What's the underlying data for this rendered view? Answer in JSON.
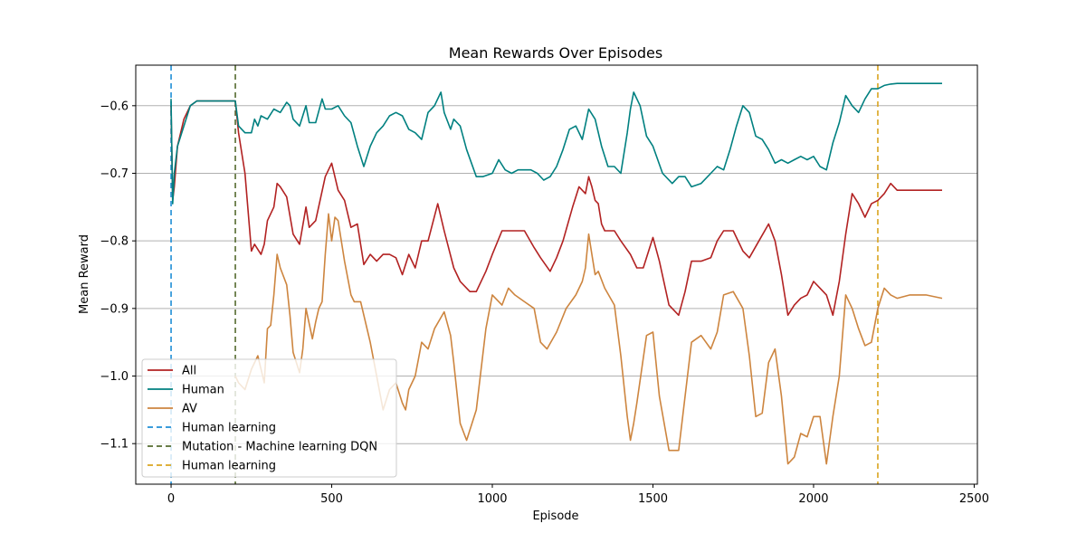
{
  "chart_data": {
    "type": "line",
    "title": "Mean Rewards Over Episodes",
    "xlabel": "Episode",
    "ylabel": "Mean Reward",
    "xlim": [
      -110,
      2510
    ],
    "ylim": [
      -1.16,
      -0.54
    ],
    "xticks": [
      0,
      500,
      1000,
      1500,
      2000,
      2500
    ],
    "yticks": [
      -0.6,
      -0.7,
      -0.8,
      -0.9,
      -1.0,
      -1.1
    ],
    "xtick_labels": [
      "0",
      "500",
      "1000",
      "1500",
      "2000",
      "2500"
    ],
    "ytick_labels": [
      "−0.6",
      "−0.7",
      "−0.8",
      "−0.9",
      "−1.0",
      "−1.1"
    ],
    "grid": "horizontal",
    "legend_position": "lower-left",
    "series": [
      {
        "name": "All",
        "color": "#b22222",
        "x": [
          0,
          5,
          10,
          20,
          40,
          60,
          80,
          100,
          150,
          200,
          210,
          230,
          250,
          260,
          280,
          290,
          300,
          320,
          330,
          340,
          360,
          380,
          400,
          420,
          430,
          450,
          480,
          500,
          520,
          540,
          560,
          580,
          600,
          620,
          640,
          660,
          680,
          700,
          720,
          740,
          760,
          780,
          800,
          830,
          850,
          880,
          900,
          930,
          950,
          980,
          1000,
          1030,
          1080,
          1100,
          1130,
          1150,
          1180,
          1200,
          1220,
          1250,
          1270,
          1290,
          1300,
          1310,
          1320,
          1330,
          1340,
          1350,
          1380,
          1400,
          1430,
          1450,
          1470,
          1490,
          1500,
          1520,
          1550,
          1580,
          1600,
          1620,
          1650,
          1680,
          1700,
          1720,
          1750,
          1780,
          1800,
          1830,
          1860,
          1880,
          1900,
          1920,
          1940,
          1960,
          1980,
          2000,
          2020,
          2040,
          2060,
          2080,
          2100,
          2120,
          2140,
          2160,
          2180,
          2200,
          2220,
          2240,
          2260,
          2300,
          2350,
          2400
        ],
        "y": [
          -0.6,
          -0.74,
          -0.72,
          -0.66,
          -0.62,
          -0.6,
          -0.593,
          -0.593,
          -0.593,
          -0.593,
          -0.64,
          -0.7,
          -0.815,
          -0.805,
          -0.82,
          -0.805,
          -0.77,
          -0.75,
          -0.715,
          -0.72,
          -0.735,
          -0.79,
          -0.805,
          -0.75,
          -0.78,
          -0.77,
          -0.705,
          -0.685,
          -0.725,
          -0.74,
          -0.78,
          -0.775,
          -0.835,
          -0.82,
          -0.83,
          -0.82,
          -0.82,
          -0.825,
          -0.85,
          -0.82,
          -0.84,
          -0.8,
          -0.8,
          -0.745,
          -0.785,
          -0.84,
          -0.86,
          -0.875,
          -0.875,
          -0.845,
          -0.82,
          -0.785,
          -0.785,
          -0.785,
          -0.81,
          -0.825,
          -0.845,
          -0.825,
          -0.8,
          -0.75,
          -0.72,
          -0.73,
          -0.705,
          -0.72,
          -0.74,
          -0.745,
          -0.775,
          -0.785,
          -0.785,
          -0.8,
          -0.82,
          -0.84,
          -0.84,
          -0.81,
          -0.795,
          -0.83,
          -0.895,
          -0.91,
          -0.875,
          -0.83,
          -0.83,
          -0.825,
          -0.8,
          -0.785,
          -0.785,
          -0.815,
          -0.825,
          -0.8,
          -0.775,
          -0.8,
          -0.85,
          -0.91,
          -0.895,
          -0.885,
          -0.88,
          -0.86,
          -0.87,
          -0.88,
          -0.91,
          -0.86,
          -0.79,
          -0.73,
          -0.745,
          -0.765,
          -0.745,
          -0.74,
          -0.73,
          -0.715,
          -0.725,
          -0.725,
          -0.725,
          -0.725
        ]
      },
      {
        "name": "Human",
        "color": "#008080",
        "x": [
          0,
          5,
          10,
          20,
          40,
          60,
          80,
          100,
          150,
          200,
          210,
          230,
          250,
          260,
          270,
          280,
          300,
          320,
          340,
          360,
          370,
          380,
          400,
          420,
          430,
          450,
          470,
          480,
          500,
          520,
          540,
          560,
          580,
          600,
          620,
          640,
          660,
          680,
          700,
          720,
          740,
          760,
          780,
          800,
          820,
          840,
          850,
          870,
          880,
          900,
          920,
          950,
          970,
          1000,
          1020,
          1040,
          1060,
          1080,
          1100,
          1120,
          1140,
          1160,
          1180,
          1200,
          1220,
          1240,
          1260,
          1280,
          1300,
          1320,
          1340,
          1360,
          1380,
          1400,
          1420,
          1430,
          1440,
          1460,
          1480,
          1500,
          1530,
          1560,
          1580,
          1600,
          1620,
          1650,
          1680,
          1700,
          1720,
          1740,
          1760,
          1780,
          1800,
          1820,
          1840,
          1860,
          1880,
          1900,
          1920,
          1940,
          1960,
          1980,
          2000,
          2020,
          2040,
          2060,
          2080,
          2100,
          2120,
          2140,
          2160,
          2180,
          2200,
          2220,
          2240,
          2260,
          2300,
          2350,
          2400
        ],
        "y": [
          -0.59,
          -0.745,
          -0.7,
          -0.66,
          -0.63,
          -0.6,
          -0.593,
          -0.593,
          -0.593,
          -0.593,
          -0.63,
          -0.64,
          -0.64,
          -0.62,
          -0.63,
          -0.615,
          -0.62,
          -0.605,
          -0.61,
          -0.595,
          -0.6,
          -0.62,
          -0.63,
          -0.6,
          -0.625,
          -0.625,
          -0.59,
          -0.605,
          -0.605,
          -0.6,
          -0.615,
          -0.625,
          -0.66,
          -0.69,
          -0.66,
          -0.64,
          -0.63,
          -0.615,
          -0.61,
          -0.615,
          -0.635,
          -0.64,
          -0.65,
          -0.61,
          -0.6,
          -0.58,
          -0.61,
          -0.635,
          -0.62,
          -0.63,
          -0.665,
          -0.705,
          -0.705,
          -0.7,
          -0.68,
          -0.695,
          -0.7,
          -0.695,
          -0.695,
          -0.695,
          -0.7,
          -0.71,
          -0.705,
          -0.69,
          -0.665,
          -0.635,
          -0.63,
          -0.65,
          -0.605,
          -0.62,
          -0.66,
          -0.69,
          -0.69,
          -0.7,
          -0.64,
          -0.605,
          -0.58,
          -0.6,
          -0.645,
          -0.66,
          -0.7,
          -0.715,
          -0.705,
          -0.705,
          -0.72,
          -0.715,
          -0.7,
          -0.69,
          -0.695,
          -0.665,
          -0.63,
          -0.6,
          -0.61,
          -0.645,
          -0.65,
          -0.665,
          -0.685,
          -0.68,
          -0.685,
          -0.68,
          -0.675,
          -0.68,
          -0.675,
          -0.69,
          -0.695,
          -0.655,
          -0.625,
          -0.585,
          -0.6,
          -0.61,
          -0.59,
          -0.575,
          -0.575,
          -0.57,
          -0.568,
          -0.567,
          -0.567,
          -0.567,
          -0.567
        ]
      },
      {
        "name": "AV",
        "color": "#cd853f",
        "x": [
          200,
          210,
          230,
          250,
          270,
          290,
          300,
          310,
          320,
          330,
          340,
          360,
          370,
          380,
          400,
          410,
          420,
          440,
          450,
          460,
          470,
          480,
          490,
          500,
          510,
          520,
          540,
          560,
          570,
          590,
          620,
          640,
          660,
          680,
          700,
          720,
          730,
          740,
          760,
          780,
          800,
          820,
          850,
          870,
          880,
          900,
          920,
          950,
          980,
          1000,
          1030,
          1050,
          1070,
          1100,
          1130,
          1150,
          1170,
          1200,
          1230,
          1260,
          1280,
          1290,
          1300,
          1310,
          1320,
          1330,
          1350,
          1380,
          1400,
          1420,
          1430,
          1440,
          1450,
          1480,
          1500,
          1520,
          1550,
          1580,
          1600,
          1620,
          1650,
          1680,
          1700,
          1720,
          1750,
          1780,
          1800,
          1820,
          1840,
          1860,
          1880,
          1900,
          1920,
          1940,
          1960,
          1980,
          2000,
          2020,
          2040,
          2060,
          2080,
          2100,
          2120,
          2140,
          2160,
          2180,
          2200,
          2220,
          2240,
          2260,
          2300,
          2350,
          2400
        ],
        "y": [
          -1.0,
          -1.01,
          -1.02,
          -0.99,
          -0.97,
          -1.01,
          -0.93,
          -0.925,
          -0.88,
          -0.82,
          -0.84,
          -0.865,
          -0.91,
          -0.965,
          -0.995,
          -0.96,
          -0.9,
          -0.945,
          -0.92,
          -0.9,
          -0.89,
          -0.82,
          -0.76,
          -0.8,
          -0.765,
          -0.77,
          -0.83,
          -0.88,
          -0.89,
          -0.89,
          -0.95,
          -1.0,
          -1.05,
          -1.02,
          -1.01,
          -1.04,
          -1.05,
          -1.02,
          -1.0,
          -0.95,
          -0.96,
          -0.93,
          -0.905,
          -0.94,
          -0.98,
          -1.07,
          -1.095,
          -1.05,
          -0.93,
          -0.88,
          -0.895,
          -0.87,
          -0.88,
          -0.89,
          -0.9,
          -0.95,
          -0.96,
          -0.935,
          -0.9,
          -0.88,
          -0.86,
          -0.84,
          -0.79,
          -0.82,
          -0.85,
          -0.845,
          -0.87,
          -0.895,
          -0.97,
          -1.06,
          -1.095,
          -1.07,
          -1.04,
          -0.94,
          -0.935,
          -1.03,
          -1.11,
          -1.11,
          -1.03,
          -0.95,
          -0.94,
          -0.96,
          -0.935,
          -0.88,
          -0.875,
          -0.9,
          -0.97,
          -1.06,
          -1.055,
          -0.98,
          -0.96,
          -1.03,
          -1.13,
          -1.12,
          -1.085,
          -1.09,
          -1.06,
          -1.06,
          -1.13,
          -1.06,
          -1.0,
          -0.88,
          -0.9,
          -0.93,
          -0.955,
          -0.95,
          -0.9,
          -0.87,
          -0.88,
          -0.885,
          -0.88,
          -0.88,
          -0.885
        ]
      },
      {
        "name": "Human learning",
        "color": "#1f8ed6",
        "vline": 0,
        "style": "dashed"
      },
      {
        "name": "Mutation - Machine learning DQN",
        "color": "#556b2f",
        "vline": 200,
        "style": "dashed"
      },
      {
        "name": "Human learning",
        "color": "#daa520",
        "vline": 2200,
        "style": "dashed"
      }
    ]
  }
}
